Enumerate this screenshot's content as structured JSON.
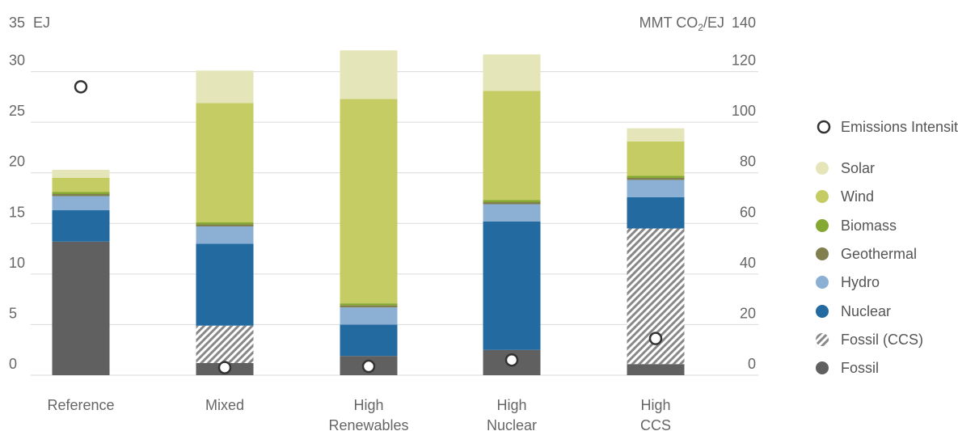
{
  "chart_data": {
    "type": "bar",
    "stacked": true,
    "title": "",
    "y_left_unit": "EJ",
    "y_right_unit_parts": [
      "MMT CO",
      "2",
      "/EJ"
    ],
    "ylim_left": [
      0,
      35
    ],
    "ylim_right": [
      0,
      140
    ],
    "left_ticks": [
      0,
      5,
      10,
      15,
      20,
      25,
      30,
      35
    ],
    "right_ticks": [
      0,
      20,
      40,
      60,
      80,
      100,
      120,
      140
    ],
    "grid": true,
    "legend_position": "right",
    "categories": [
      [
        "Reference"
      ],
      [
        "Mixed"
      ],
      [
        "High",
        "Renewables"
      ],
      [
        "High",
        "Nuclear"
      ],
      [
        "High",
        "CCS"
      ]
    ],
    "series": [
      {
        "name": "Fossil",
        "color": "#606060",
        "values": [
          13.2,
          1.2,
          1.9,
          2.5,
          1.1
        ]
      },
      {
        "name": "Fossil (CCS)",
        "color": "#888888",
        "pattern": "hatch",
        "values": [
          0,
          3.7,
          0,
          0,
          13.4
        ]
      },
      {
        "name": "Nuclear",
        "color": "#236aa0",
        "values": [
          3.1,
          8.1,
          3.1,
          12.7,
          3.1
        ]
      },
      {
        "name": "Hydro",
        "color": "#8cb0d4",
        "values": [
          1.4,
          1.7,
          1.7,
          1.7,
          1.7
        ]
      },
      {
        "name": "Geothermal",
        "color": "#827f4e",
        "values": [
          0.2,
          0.2,
          0.2,
          0.2,
          0.2
        ]
      },
      {
        "name": "Biomass",
        "color": "#85a832",
        "values": [
          0.2,
          0.2,
          0.2,
          0.2,
          0.2
        ]
      },
      {
        "name": "Wind",
        "color": "#c5cc63",
        "values": [
          1.4,
          11.8,
          20.2,
          10.8,
          3.4
        ]
      },
      {
        "name": "Solar",
        "color": "#e4e6b9",
        "values": [
          0.8,
          3.2,
          4.8,
          3.6,
          1.3
        ]
      }
    ],
    "emissions_intensity": {
      "name": "Emissions Intensity",
      "values": [
        114,
        3,
        3.5,
        6,
        14.5
      ]
    },
    "legend_order": [
      "Emissions Intensity",
      "Solar",
      "Wind",
      "Biomass",
      "Geothermal",
      "Hydro",
      "Nuclear",
      "Fossil (CCS)",
      "Fossil"
    ]
  }
}
